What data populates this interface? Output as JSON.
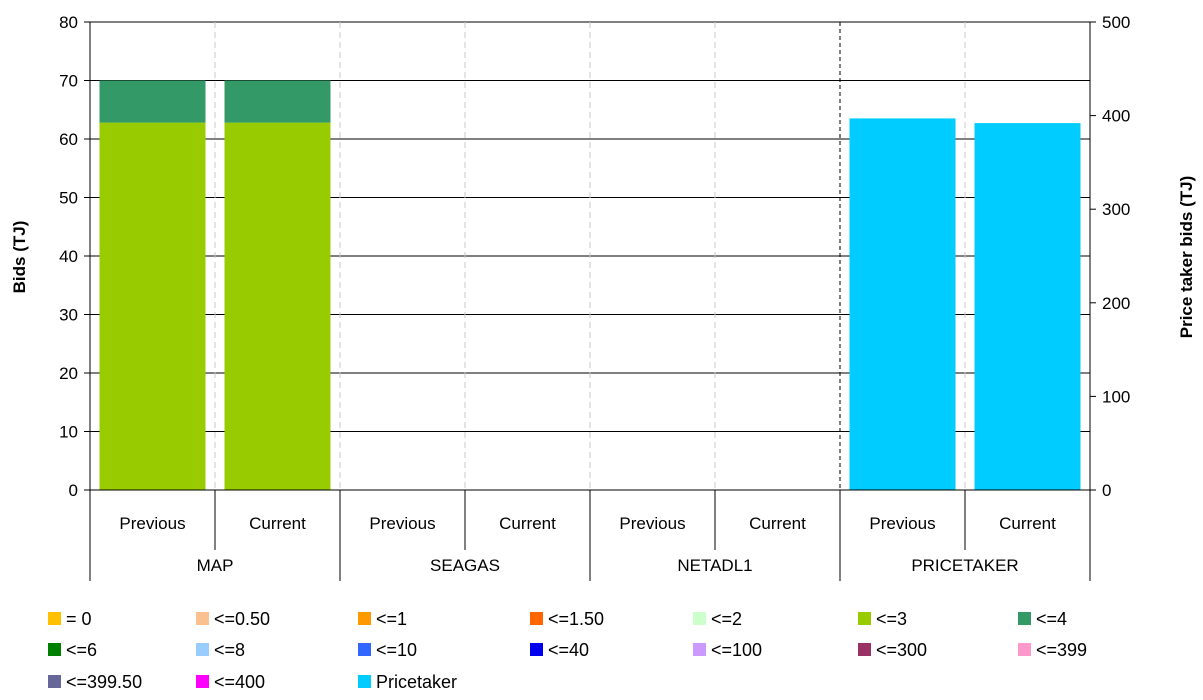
{
  "chart_data": {
    "type": "bar",
    "stacked": true,
    "ylabel": "Bids (TJ)",
    "y2label": "Price taker bids (TJ)",
    "ylim": [
      0,
      80
    ],
    "yticks": [
      0,
      10,
      20,
      30,
      40,
      50,
      60,
      70,
      80
    ],
    "y2lim": [
      0,
      500
    ],
    "y2ticks": [
      0,
      100,
      200,
      300,
      400,
      500
    ],
    "grid": true,
    "legend_position": "bottom",
    "groups": [
      {
        "name": "MAP",
        "bars": [
          "Previous",
          "Current"
        ]
      },
      {
        "name": "SEAGAS",
        "bars": [
          "Previous",
          "Current"
        ]
      },
      {
        "name": "NETADL1",
        "bars": [
          "Previous",
          "Current"
        ]
      },
      {
        "name": "PRICETAKER",
        "bars": [
          "Previous",
          "Current"
        ]
      }
    ],
    "series": [
      {
        "name": "= 0",
        "color": "#ffc000",
        "axis": "left",
        "values": [
          0,
          0,
          0,
          0,
          0,
          0,
          0,
          0
        ]
      },
      {
        "name": "<=0.50",
        "color": "#fac090",
        "axis": "left",
        "values": [
          0,
          0,
          0,
          0,
          0,
          0,
          0,
          0
        ]
      },
      {
        "name": "<=1",
        "color": "#ff9900",
        "axis": "left",
        "values": [
          0,
          0,
          0,
          0,
          0,
          0,
          0,
          0
        ]
      },
      {
        "name": "<=1.50",
        "color": "#ff6600",
        "axis": "left",
        "values": [
          0,
          0,
          0,
          0,
          0,
          0,
          0,
          0
        ]
      },
      {
        "name": "<=2",
        "color": "#ccffcc",
        "axis": "left",
        "values": [
          0,
          0,
          0,
          0,
          0,
          0,
          0,
          0
        ]
      },
      {
        "name": "<=3",
        "color": "#99cc00",
        "axis": "left",
        "values": [
          62.8,
          62.8,
          0,
          0,
          0,
          0,
          0,
          0
        ]
      },
      {
        "name": "<=4",
        "color": "#339966",
        "axis": "left",
        "values": [
          7.2,
          7.2,
          0,
          0,
          0,
          0,
          0,
          0
        ]
      },
      {
        "name": "<=6",
        "color": "#008000",
        "axis": "left",
        "values": [
          0,
          0,
          0,
          0,
          0,
          0,
          0,
          0
        ]
      },
      {
        "name": "<=8",
        "color": "#99ccff",
        "axis": "left",
        "values": [
          0,
          0,
          0,
          0,
          0,
          0,
          0,
          0
        ]
      },
      {
        "name": "<=10",
        "color": "#3366ff",
        "axis": "left",
        "values": [
          0,
          0,
          0,
          0,
          0,
          0,
          0,
          0
        ]
      },
      {
        "name": "<=40",
        "color": "#0000ee",
        "axis": "left",
        "values": [
          0,
          0,
          0,
          0,
          0,
          0,
          0,
          0
        ]
      },
      {
        "name": "<=100",
        "color": "#cc99ff",
        "axis": "left",
        "values": [
          0,
          0,
          0,
          0,
          0,
          0,
          0,
          0
        ]
      },
      {
        "name": "<=300",
        "color": "#993366",
        "axis": "left",
        "values": [
          0,
          0,
          0,
          0,
          0,
          0,
          0,
          0
        ]
      },
      {
        "name": "<=399",
        "color": "#ff99cc",
        "axis": "left",
        "values": [
          0,
          0,
          0,
          0,
          0,
          0,
          0,
          0
        ]
      },
      {
        "name": "<=399.50",
        "color": "#666699",
        "axis": "left",
        "values": [
          0,
          0,
          0,
          0,
          0,
          0,
          0,
          0
        ]
      },
      {
        "name": "<=400",
        "color": "#ff00ff",
        "axis": "left",
        "values": [
          0,
          0,
          0,
          0,
          0,
          0,
          0,
          0
        ]
      },
      {
        "name": "Pricetaker",
        "color": "#00ccff",
        "axis": "right",
        "values": [
          0,
          0,
          0,
          0,
          0,
          0,
          397,
          392
        ]
      }
    ]
  }
}
